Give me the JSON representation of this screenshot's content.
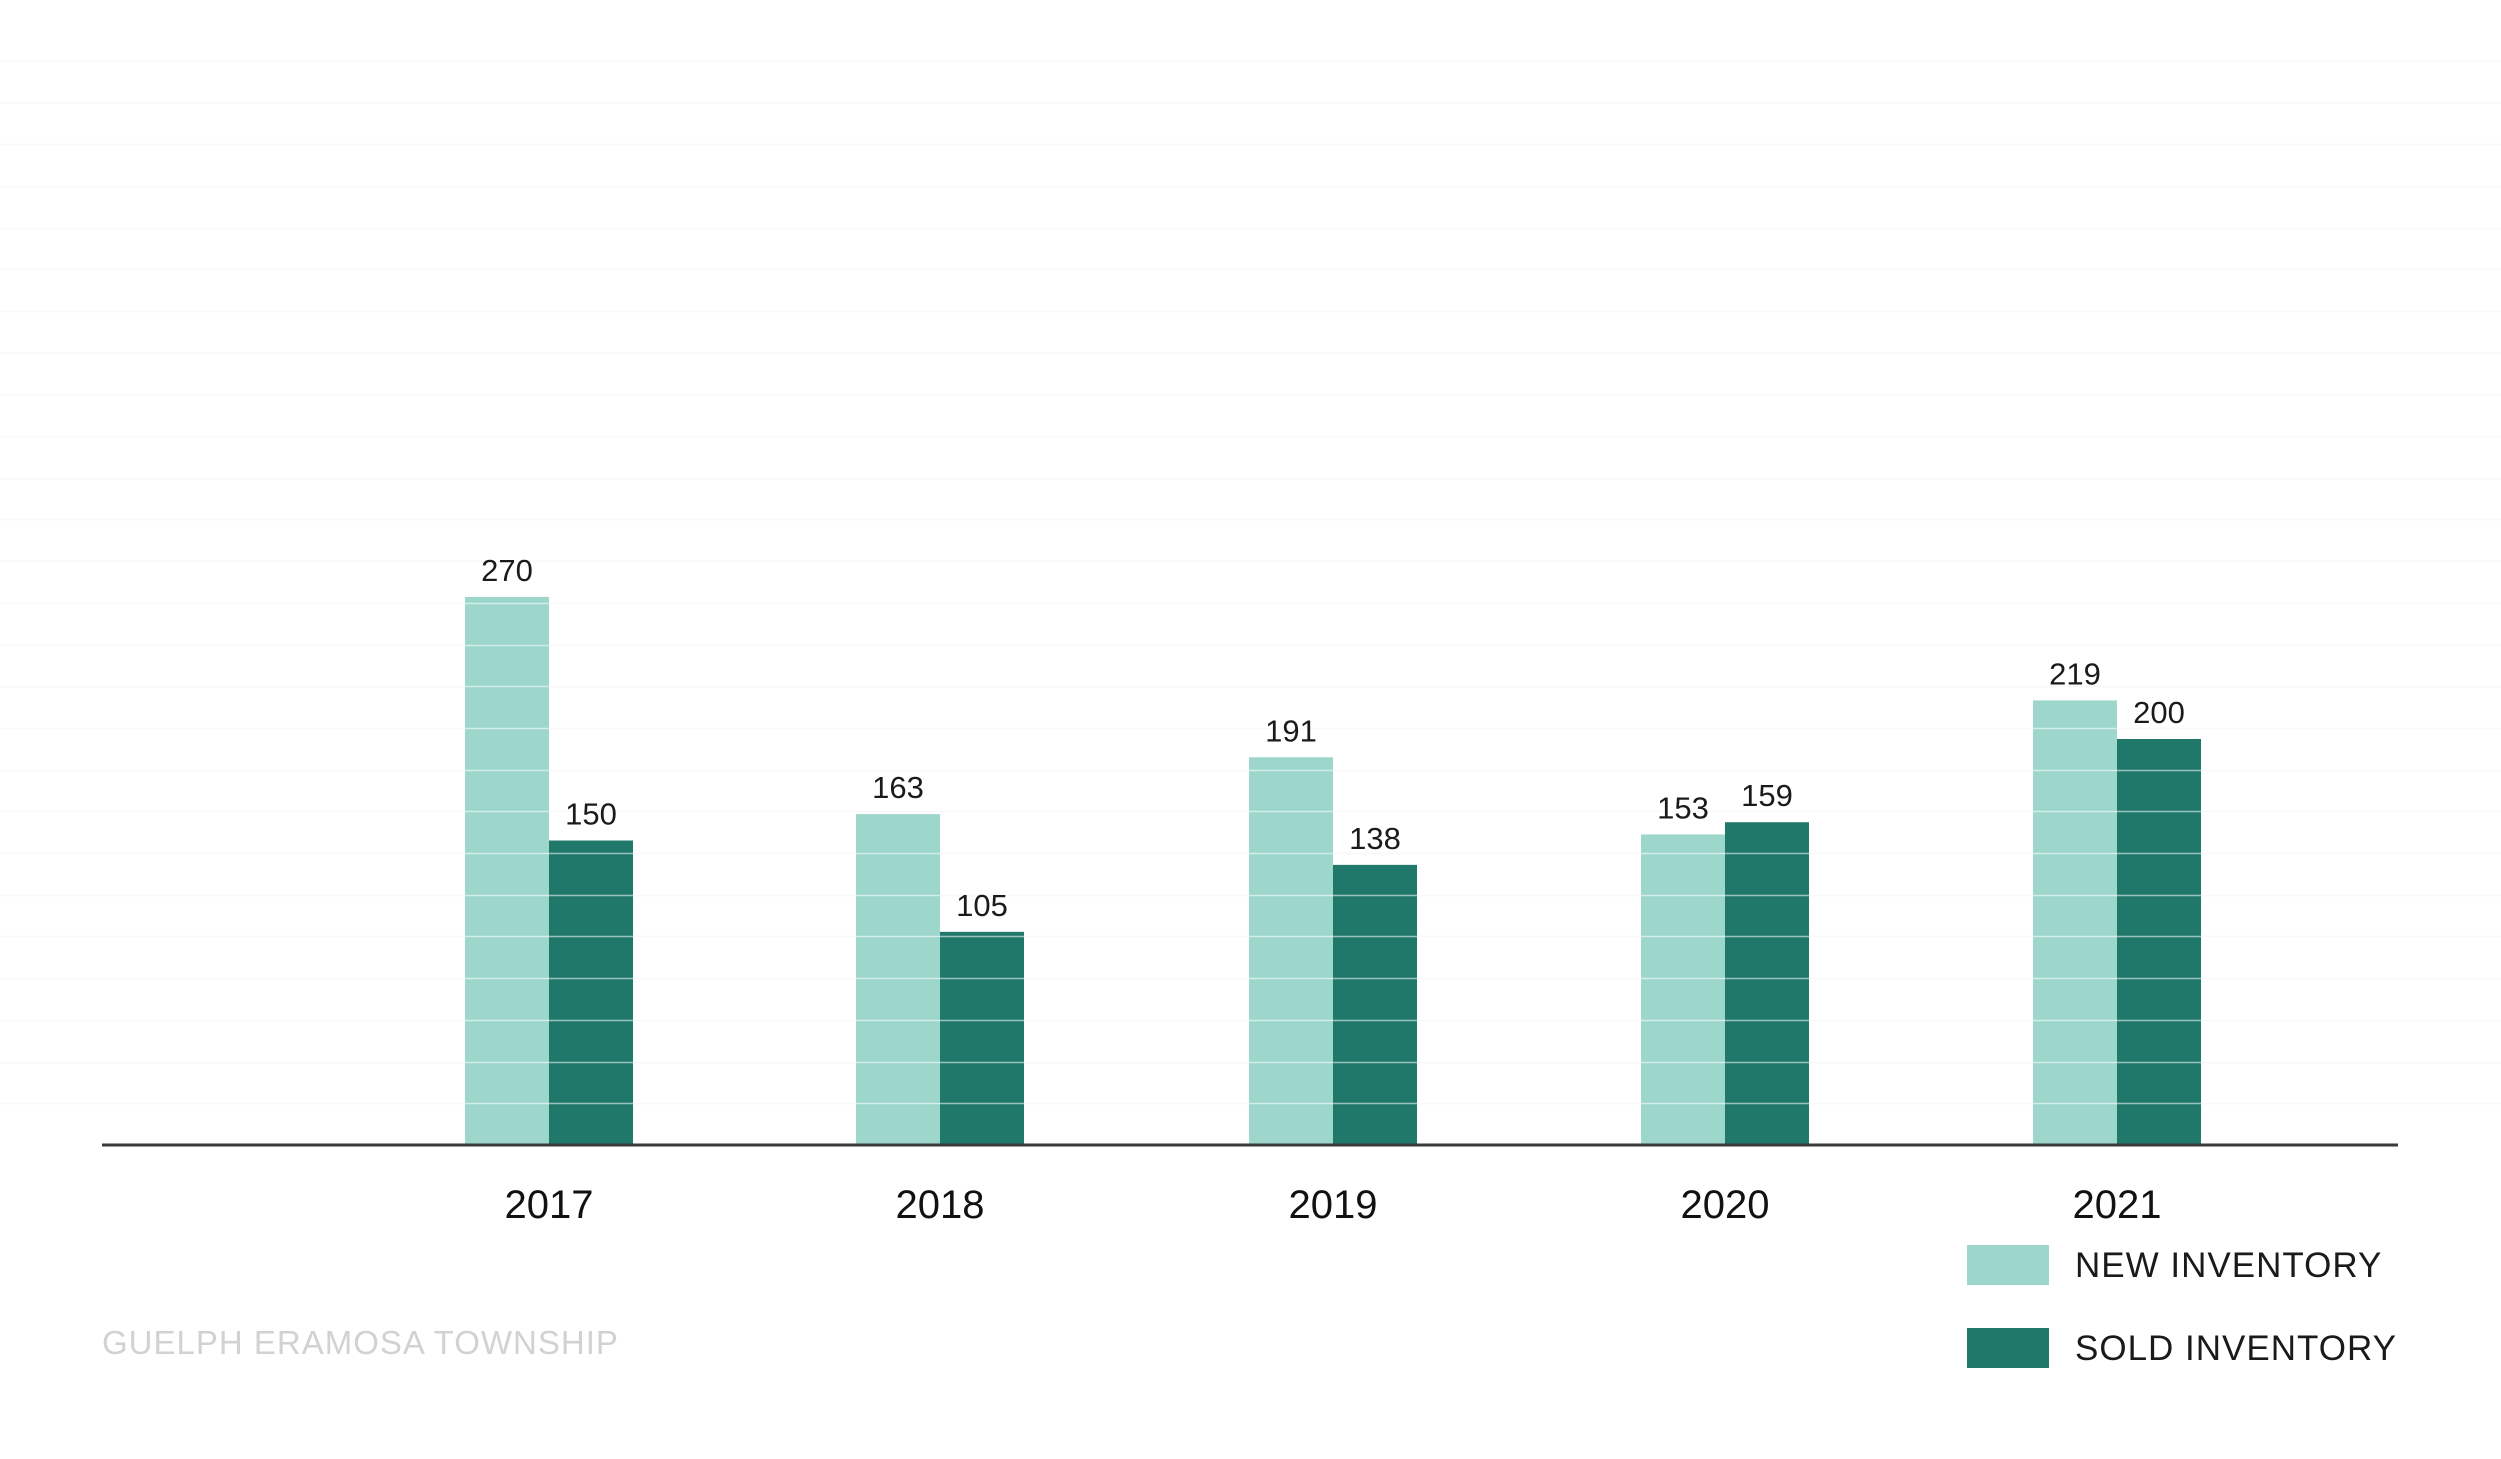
{
  "chart_data": {
    "type": "bar",
    "categories": [
      "2017",
      "2018",
      "2019",
      "2020",
      "2021"
    ],
    "series": [
      {
        "name": "NEW INVENTORY",
        "values": [
          270,
          163,
          191,
          153,
          219
        ],
        "color": "#9dd7cc"
      },
      {
        "name": "SOLD INVENTORY",
        "values": [
          150,
          105,
          138,
          159,
          200
        ],
        "color": "#20786a"
      }
    ],
    "grid": true,
    "legend_position": "bottom-right",
    "axis_color": "#3a3a3a",
    "grid_color": "#f1f1f1"
  },
  "footer_text": "GUELPH ERAMOSA TOWNSHIP"
}
